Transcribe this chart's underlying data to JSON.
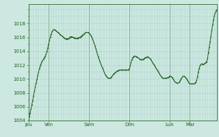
{
  "background_color": "#cce8e0",
  "plot_bg_color": "#cce8e0",
  "line_color": "#1a5c1a",
  "marker_color": "#1a5c1a",
  "grid_color": "#aacfc8",
  "tick_label_color": "#1a5c1a",
  "ylim": [
    1004,
    1020
  ],
  "yticks": [
    1004,
    1006,
    1008,
    1010,
    1012,
    1014,
    1016,
    1018
  ],
  "day_labels": [
    "Jeu",
    "Ven",
    "Sam",
    "Dim",
    "Lun",
    "Mar"
  ],
  "day_positions": [
    0,
    24,
    72,
    120,
    168,
    192
  ],
  "values": [
    1004.2,
    1004.6,
    1005.1,
    1005.7,
    1006.3,
    1006.9,
    1007.6,
    1008.2,
    1008.8,
    1009.4,
    1009.9,
    1010.5,
    1011.0,
    1011.5,
    1011.9,
    1012.2,
    1012.5,
    1012.7,
    1012.9,
    1013.1,
    1013.3,
    1013.6,
    1014.0,
    1014.5,
    1015.1,
    1015.6,
    1016.1,
    1016.5,
    1016.8,
    1017.0,
    1017.1,
    1017.1,
    1017.0,
    1016.9,
    1016.8,
    1016.7,
    1016.6,
    1016.5,
    1016.4,
    1016.3,
    1016.2,
    1016.1,
    1016.0,
    1015.9,
    1015.8,
    1015.8,
    1015.8,
    1015.8,
    1015.9,
    1016.0,
    1016.1,
    1016.1,
    1016.1,
    1016.0,
    1016.0,
    1015.9,
    1015.9,
    1015.9,
    1015.9,
    1015.9,
    1016.0,
    1016.0,
    1016.1,
    1016.2,
    1016.3,
    1016.4,
    1016.5,
    1016.6,
    1016.7,
    1016.7,
    1016.7,
    1016.7,
    1016.6,
    1016.5,
    1016.3,
    1016.1,
    1015.8,
    1015.5,
    1015.2,
    1014.8,
    1014.4,
    1014.0,
    1013.6,
    1013.2,
    1012.8,
    1012.5,
    1012.2,
    1011.9,
    1011.6,
    1011.3,
    1011.0,
    1010.7,
    1010.5,
    1010.3,
    1010.2,
    1010.1,
    1010.1,
    1010.1,
    1010.2,
    1010.3,
    1010.5,
    1010.7,
    1010.8,
    1010.9,
    1011.0,
    1011.1,
    1011.2,
    1011.2,
    1011.3,
    1011.3,
    1011.3,
    1011.3,
    1011.3,
    1011.3,
    1011.3,
    1011.3,
    1011.3,
    1011.3,
    1011.3,
    1011.3,
    1011.5,
    1011.9,
    1012.4,
    1012.8,
    1013.1,
    1013.2,
    1013.3,
    1013.3,
    1013.2,
    1013.2,
    1013.1,
    1013.0,
    1012.9,
    1012.8,
    1012.8,
    1012.8,
    1012.8,
    1012.9,
    1013.0,
    1013.1,
    1013.1,
    1013.2,
    1013.2,
    1013.1,
    1013.0,
    1012.9,
    1012.7,
    1012.5,
    1012.3,
    1012.1,
    1011.9,
    1011.7,
    1011.5,
    1011.3,
    1011.1,
    1010.9,
    1010.7,
    1010.5,
    1010.3,
    1010.2,
    1010.1,
    1010.1,
    1010.1,
    1010.1,
    1010.1,
    1010.2,
    1010.2,
    1010.3,
    1010.4,
    1010.4,
    1010.3,
    1010.2,
    1010.0,
    1009.8,
    1009.6,
    1009.5,
    1009.4,
    1009.4,
    1009.4,
    1009.5,
    1009.7,
    1009.9,
    1010.1,
    1010.3,
    1010.4,
    1010.4,
    1010.3,
    1010.2,
    1010.0,
    1009.8,
    1009.6,
    1009.4,
    1009.3,
    1009.3,
    1009.3,
    1009.3,
    1009.3,
    1009.3,
    1009.4,
    1009.5,
    1009.8,
    1010.3,
    1011.0,
    1011.5,
    1011.9,
    1012.1,
    1012.2,
    1012.1,
    1012.1,
    1012.2,
    1012.3,
    1012.4,
    1012.5,
    1013.0,
    1013.8,
    1014.6,
    1015.4,
    1016.2,
    1017.0,
    1017.8,
    1018.5,
    1019.1,
    1019.5,
    1019.8,
    1020.0
  ]
}
